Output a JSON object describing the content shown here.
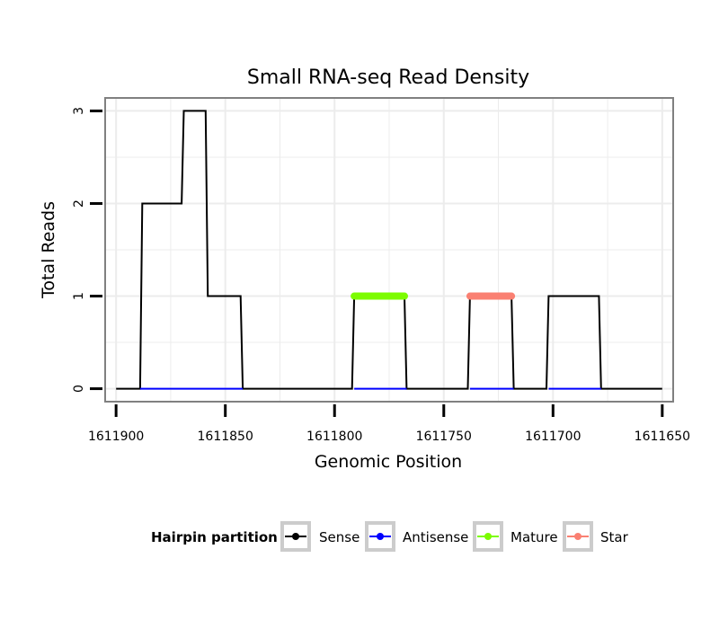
{
  "chart_data": {
    "type": "line",
    "title": "Small RNA-seq Read Density",
    "xlabel": "Genomic Position",
    "ylabel": "Total Reads",
    "xlim": [
      1611905,
      1611645
    ],
    "ylim": [
      -0.14,
      3.14
    ],
    "x_ticks": [
      1611900,
      1611850,
      1611800,
      1611750,
      1611700,
      1611650
    ],
    "x_tick_labels": [
      "1611900",
      "1611850",
      "1611800",
      "1611750",
      "1611700",
      "1611650"
    ],
    "y_ticks": [
      0,
      1,
      2,
      3
    ],
    "y_tick_labels": [
      "0",
      "1",
      "2",
      "3"
    ],
    "grid": true,
    "legend": {
      "title": "Hairpin partition",
      "position": "bottom",
      "entries": [
        "Sense",
        "Antisense",
        "Mature",
        "Star"
      ]
    },
    "series": [
      {
        "name": "Sense",
        "color": "#000000",
        "points": [
          [
            1611900,
            0
          ],
          [
            1611889,
            0
          ],
          [
            1611888,
            2
          ],
          [
            1611870,
            2
          ],
          [
            1611869,
            3
          ],
          [
            1611859,
            3
          ],
          [
            1611858,
            1
          ],
          [
            1611843,
            1
          ],
          [
            1611842,
            0
          ],
          [
            1611792,
            0
          ],
          [
            1611791,
            1
          ],
          [
            1611768,
            1
          ],
          [
            1611767,
            0
          ],
          [
            1611739,
            0
          ],
          [
            1611738,
            1
          ],
          [
            1611719,
            1
          ],
          [
            1611718,
            0
          ],
          [
            1611703,
            0
          ],
          [
            1611702,
            1
          ],
          [
            1611679,
            1
          ],
          [
            1611678,
            0
          ],
          [
            1611650,
            0
          ]
        ]
      },
      {
        "name": "Antisense",
        "color": "#0000ff",
        "points": [
          [
            1611889,
            0
          ],
          [
            1611842,
            0
          ],
          [
            1611791,
            0
          ],
          [
            1611767,
            0
          ],
          [
            1611738,
            0
          ],
          [
            1611718,
            0
          ],
          [
            1611702,
            0
          ],
          [
            1611678,
            0
          ]
        ],
        "segments": [
          [
            1611889,
            1611842
          ],
          [
            1611791,
            1611767
          ],
          [
            1611738,
            1611718
          ],
          [
            1611702,
            1611678
          ]
        ]
      },
      {
        "name": "Mature",
        "color": "#7cfc00",
        "points": [
          [
            1611791,
            1
          ],
          [
            1611768,
            1
          ]
        ]
      },
      {
        "name": "Star",
        "color": "#fa8072",
        "points": [
          [
            1611738,
            1
          ],
          [
            1611719,
            1
          ]
        ]
      }
    ]
  }
}
